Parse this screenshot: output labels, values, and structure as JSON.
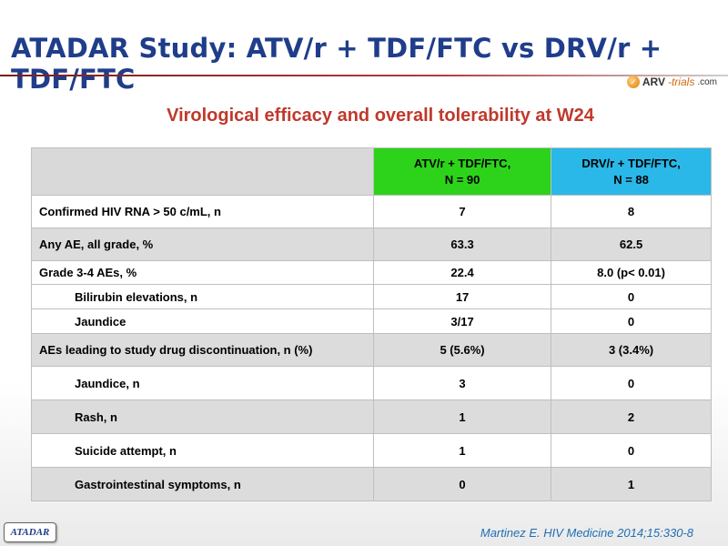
{
  "slide": {
    "title": "ATADAR Study: ATV/r + TDF/FTC vs DRV/r + TDF/FTC",
    "subtitle": "Virological efficacy and overall tolerability at W24",
    "logo": {
      "arv": "ARV",
      "trials": "-trials",
      "com": ".com"
    },
    "footer_tag": "ATADAR",
    "citation": "Martinez E. HIV Medicine 2014;15:330-8"
  },
  "table": {
    "columns": {
      "atv_name": "ATV/r + TDF/FTC,",
      "atv_n": "N = 90",
      "drv_name": "DRV/r + TDF/FTC,",
      "drv_n": "N = 88"
    },
    "rows": [
      {
        "label": "Confirmed HIV RNA > 50 c/mL, n",
        "atv": "7",
        "drv": "8"
      },
      {
        "label": "Any AE, all grade, %",
        "atv": "63.3",
        "drv": "62.5"
      },
      {
        "label": "Grade 3-4 AEs, %",
        "atv": "22.4",
        "drv": "8.0 (p< 0.01)"
      },
      {
        "label": "Bilirubin elevations, n",
        "atv": "17",
        "drv": "0"
      },
      {
        "label": "Jaundice",
        "atv": "3/17",
        "drv": "0"
      },
      {
        "label": "AEs leading to study drug discontinuation, n (%)",
        "atv": "5 (5.6%)",
        "drv": "3 (3.4%)"
      },
      {
        "label": "Jaundice, n",
        "atv": "3",
        "drv": "0"
      },
      {
        "label": "Rash, n",
        "atv": "1",
        "drv": "2"
      },
      {
        "label": "Suicide attempt, n",
        "atv": "1",
        "drv": "0"
      },
      {
        "label": "Gastrointestinal symptoms, n",
        "atv": "0",
        "drv": "1"
      }
    ]
  },
  "colors": {
    "title": "#1f3d8a",
    "subtitle": "#c0392b",
    "atv_header": "#2dd31a",
    "drv_header": "#29b8e8",
    "row_shade": "#dcdcdc"
  }
}
